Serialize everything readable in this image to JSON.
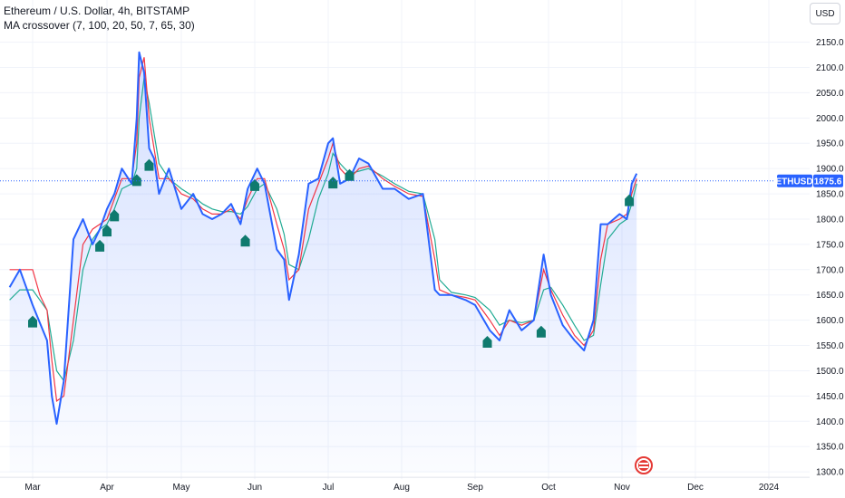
{
  "header": {
    "title": "Ethereum / U.S. Dollar, 4h, BITSTAMP",
    "indicator": "MA crossover (7, 100, 20, 50, 7, 65, 30)"
  },
  "currency_button": "USD",
  "symbol_tag": "ETHUSD",
  "price_label": "1875.6",
  "colors": {
    "price_line": "#2962ff",
    "fast_ma": "#f23645",
    "slow_ma": "#22ab94",
    "signal": "#0f7a6e",
    "area_fill": "#2962ff",
    "grid": "#f0f3fa"
  },
  "chart_data": {
    "type": "line",
    "title": "Ethereum / U.S. Dollar, 4h, BITSTAMP",
    "ylim": [
      1300,
      2150
    ],
    "y_ticks": [
      "2150.0",
      "2100.0",
      "2050.0",
      "2000.0",
      "1950.0",
      "1900.0",
      "1850.0",
      "1800.0",
      "1750.0",
      "1700.0",
      "1650.0",
      "1600.0",
      "1550.0",
      "1500.0",
      "1450.0",
      "1400.0",
      "1350.0",
      "1300.0"
    ],
    "x_ticks": [
      "Mar",
      "Apr",
      "May",
      "Jun",
      "Jul",
      "Aug",
      "Sep",
      "Oct",
      "Nov",
      "Dec",
      "2024"
    ],
    "x": [
      "Feb 20",
      "Feb 24",
      "Mar 1",
      "Mar 4",
      "Mar 7",
      "Mar 9",
      "Mar 11",
      "Mar 14",
      "Mar 18",
      "Mar 22",
      "Mar 26",
      "Mar 29",
      "Apr 1",
      "Apr 4",
      "Apr 7",
      "Apr 11",
      "Apr 13",
      "Apr 14",
      "Apr 16",
      "Apr 18",
      "Apr 20",
      "Apr 22",
      "Apr 26",
      "May 1",
      "May 6",
      "May 10",
      "May 14",
      "May 18",
      "May 22",
      "May 26",
      "May 29",
      "Jun 2",
      "Jun 5",
      "Jun 10",
      "Jun 13",
      "Jun 15",
      "Jun 19",
      "Jun 23",
      "Jun 27",
      "Jul 1",
      "Jul 3",
      "Jul 6",
      "Jul 10",
      "Jul 14",
      "Jul 18",
      "Jul 24",
      "Jul 29",
      "Aug 4",
      "Aug 10",
      "Aug 15",
      "Aug 17",
      "Aug 22",
      "Aug 28",
      "Sep 1",
      "Sep 7",
      "Sep 11",
      "Sep 15",
      "Sep 20",
      "Sep 25",
      "Sep 29",
      "Oct 2",
      "Oct 7",
      "Oct 12",
      "Oct 16",
      "Oct 20",
      "Oct 23",
      "Oct 26",
      "Oct 31",
      "Nov 3",
      "Nov 5",
      "Nov 7"
    ],
    "series": [
      {
        "values": [
          1665,
          1700,
          1630,
          1595,
          1560,
          1450,
          1395,
          1480,
          1760,
          1800,
          1750,
          1780,
          1820,
          1850,
          1900,
          1870,
          2000,
          2130,
          2090,
          1940,
          1920,
          1850,
          1900,
          1820,
          1850,
          1810,
          1800,
          1810,
          1830,
          1790,
          1860,
          1900,
          1870,
          1740,
          1720,
          1640,
          1730,
          1870,
          1880,
          1950,
          1960,
          1870,
          1880,
          1920,
          1910,
          1860,
          1860,
          1840,
          1850,
          1660,
          1650,
          1650,
          1640,
          1630,
          1580,
          1560,
          1620,
          1580,
          1600,
          1730,
          1650,
          1590,
          1560,
          1540,
          1600,
          1790,
          1790,
          1810,
          1800,
          1870,
          1890
        ]
      },
      {
        "values": [
          1700,
          1700,
          1700,
          1650,
          1620,
          1520,
          1440,
          1450,
          1600,
          1750,
          1780,
          1790,
          1800,
          1840,
          1880,
          1880,
          1950,
          2080,
          2120,
          2000,
          1940,
          1880,
          1880,
          1850,
          1840,
          1820,
          1810,
          1810,
          1820,
          1800,
          1840,
          1880,
          1880,
          1790,
          1740,
          1680,
          1700,
          1820,
          1870,
          1920,
          1950,
          1900,
          1880,
          1900,
          1905,
          1880,
          1865,
          1850,
          1845,
          1720,
          1660,
          1650,
          1645,
          1640,
          1600,
          1570,
          1600,
          1590,
          1600,
          1700,
          1660,
          1610,
          1570,
          1550,
          1580,
          1720,
          1790,
          1800,
          1810,
          1850,
          1880
        ]
      },
      {
        "values": [
          1640,
          1660,
          1660,
          1640,
          1620,
          1560,
          1500,
          1480,
          1560,
          1700,
          1760,
          1780,
          1790,
          1820,
          1860,
          1870,
          1900,
          2000,
          2080,
          2030,
          1970,
          1910,
          1880,
          1860,
          1845,
          1830,
          1820,
          1815,
          1815,
          1810,
          1825,
          1860,
          1870,
          1820,
          1770,
          1710,
          1700,
          1760,
          1840,
          1890,
          1930,
          1910,
          1890,
          1895,
          1900,
          1885,
          1870,
          1855,
          1850,
          1760,
          1680,
          1655,
          1650,
          1645,
          1620,
          1590,
          1600,
          1595,
          1600,
          1660,
          1665,
          1630,
          1590,
          1560,
          1570,
          1670,
          1760,
          1790,
          1800,
          1830,
          1870
        ]
      }
    ],
    "signals": [
      {
        "x": "Mar 1",
        "y": 1600
      },
      {
        "x": "Mar 29",
        "y": 1750
      },
      {
        "x": "Apr 1",
        "y": 1780
      },
      {
        "x": "Apr 4",
        "y": 1810
      },
      {
        "x": "Apr 13",
        "y": 1880
      },
      {
        "x": "Apr 18",
        "y": 1910
      },
      {
        "x": "May 28",
        "y": 1760
      },
      {
        "x": "Jun 1",
        "y": 1870
      },
      {
        "x": "Jul 3",
        "y": 1875
      },
      {
        "x": "Jul 10",
        "y": 1890
      },
      {
        "x": "Sep 6",
        "y": 1560
      },
      {
        "x": "Sep 28",
        "y": 1580
      },
      {
        "x": "Nov 4",
        "y": 1840
      }
    ],
    "last_price": 1875.6
  }
}
